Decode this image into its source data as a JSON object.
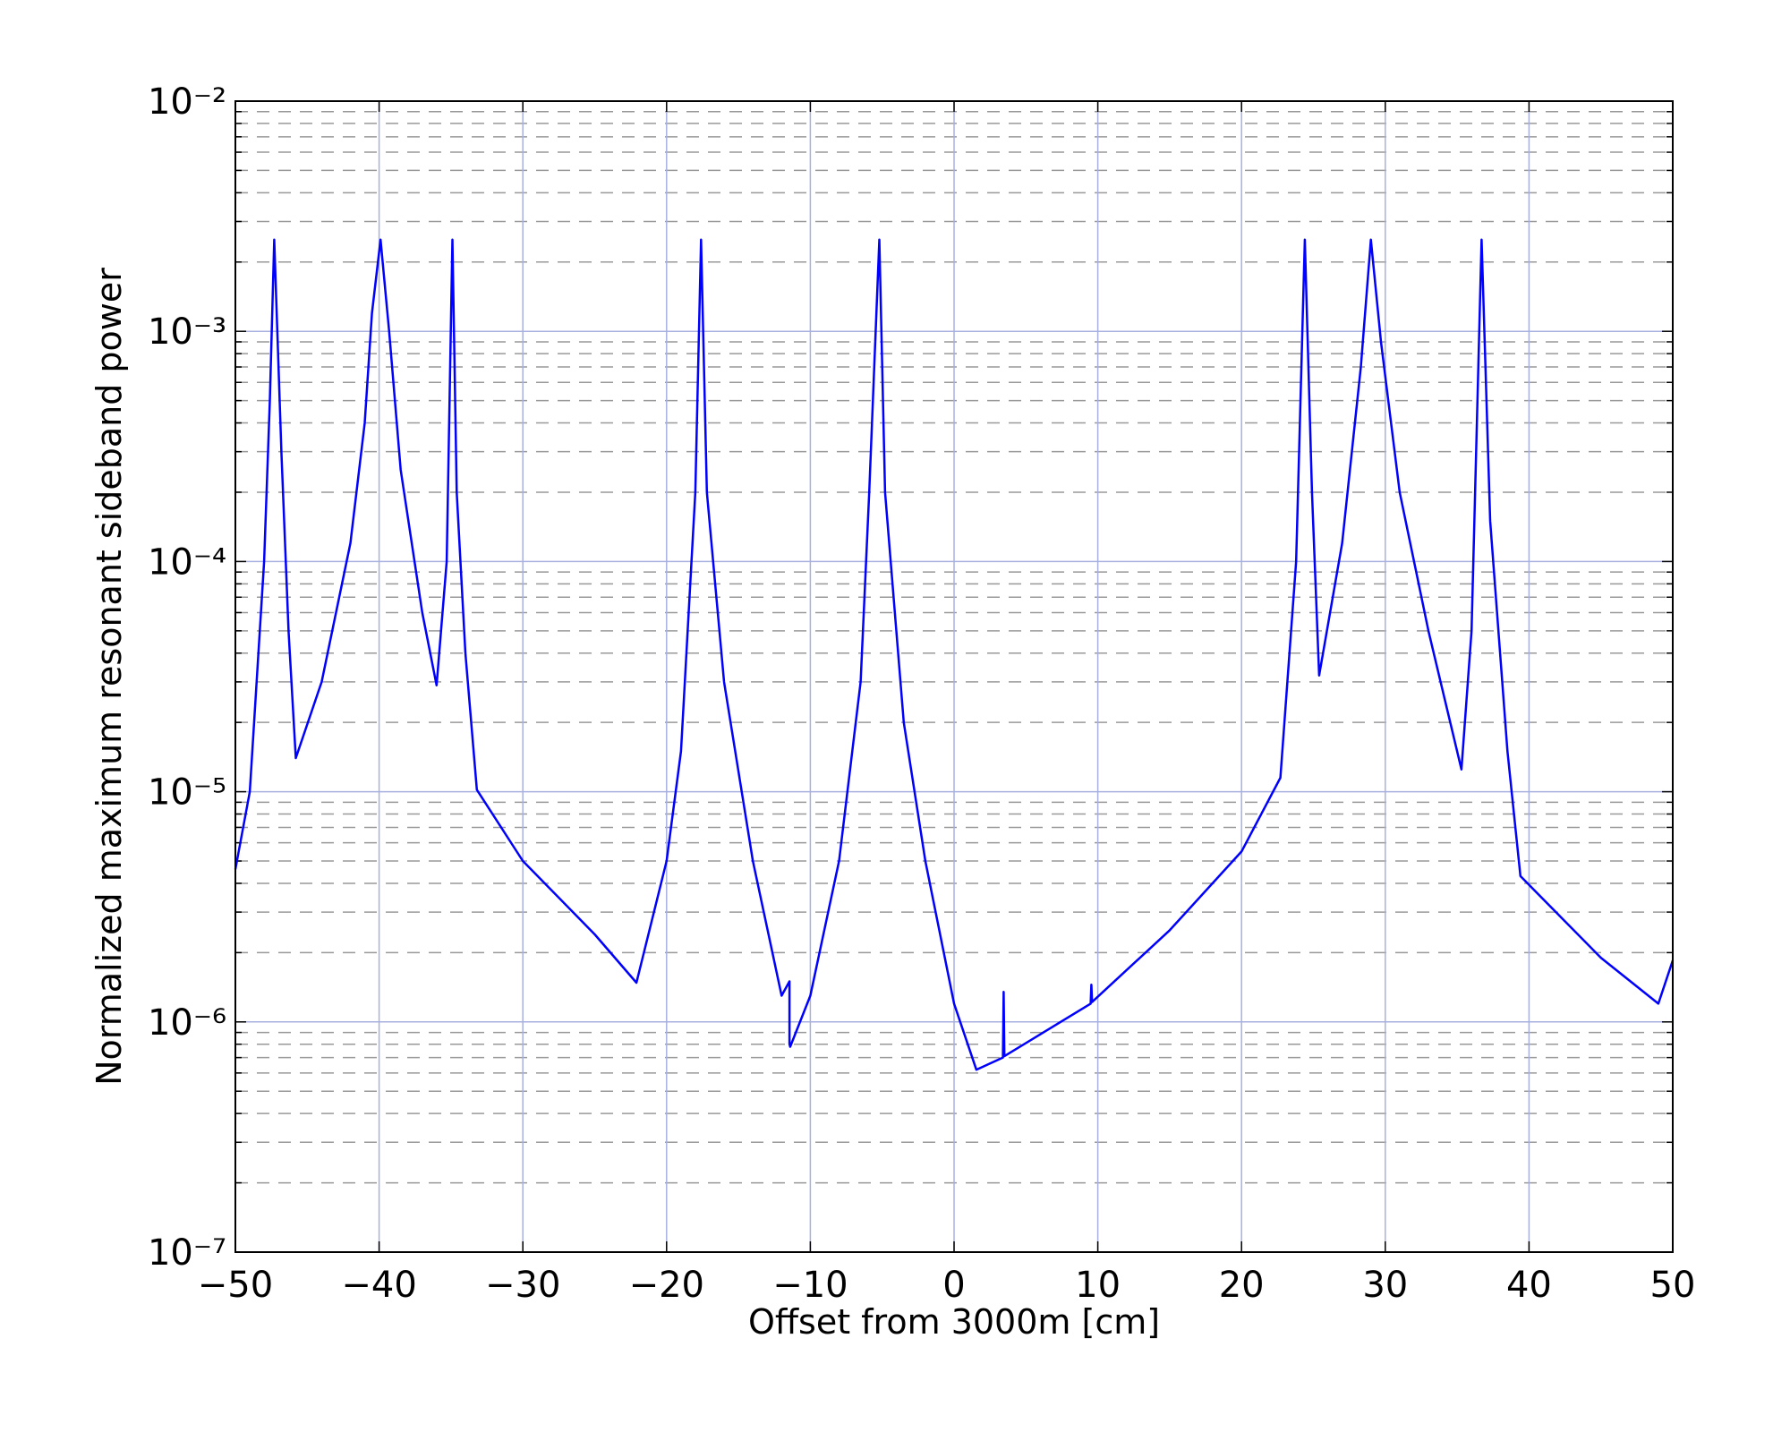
{
  "chart_data": {
    "type": "line",
    "xlabel": "Offset from 3000m [cm]",
    "ylabel": "Normalized maximum resonant sideband power",
    "yscale": "log",
    "grid": true,
    "minor_grid": true,
    "xlim": [
      -50,
      50
    ],
    "xticks": [
      {
        "value": -50,
        "label": "−50"
      },
      {
        "value": -40,
        "label": "−40"
      },
      {
        "value": -30,
        "label": "−30"
      },
      {
        "value": -20,
        "label": "−20"
      },
      {
        "value": -10,
        "label": "−10"
      },
      0,
      10,
      20,
      30,
      40,
      50
    ],
    "ylim": [
      1e-07,
      0.01
    ],
    "yticks": [
      {
        "value": 1e-07,
        "label": "10⁻⁷"
      },
      {
        "value": 1e-06,
        "label": "10⁻⁶"
      },
      {
        "value": 1e-05,
        "label": "10⁻⁵"
      },
      {
        "value": 0.0001,
        "label": "10⁻⁴"
      },
      {
        "value": 0.001,
        "label": "10⁻³"
      },
      {
        "value": 0.01,
        "label": "10⁻²"
      }
    ],
    "yminorticks": [
      2e-07,
      3e-07,
      4e-07,
      5e-07,
      6e-07,
      7e-07,
      8e-07,
      9e-07,
      2e-06,
      3e-06,
      4e-06,
      5e-06,
      6e-06,
      7e-06,
      8e-06,
      9e-06,
      2e-05,
      3e-05,
      4e-05,
      5e-05,
      6e-05,
      7e-05,
      8e-05,
      9e-05,
      0.0002,
      0.0003,
      0.0004,
      0.0005,
      0.0006,
      0.0007,
      0.0008,
      0.0009,
      0.002,
      0.003,
      0.004,
      0.005,
      0.006,
      0.007,
      0.008,
      0.009
    ],
    "series": [
      {
        "color": "#0000ff",
        "x": [
          -50,
          -49,
          -48,
          -47.6,
          -47.3,
          -46.8,
          -46.3,
          -45.8,
          -44,
          -42,
          -41,
          -40.5,
          -39.9,
          -39.3,
          -38.5,
          -37,
          -36,
          -35.3,
          -34.9,
          -34.6,
          -34,
          -33.2,
          -30,
          -25,
          -22.1,
          -20,
          -19,
          -18,
          -17.6,
          -17.2,
          -16,
          -14,
          -12,
          -11.45,
          -11.45,
          -11.4,
          -10,
          -8,
          -6.5,
          -5.9,
          -5.2,
          -4.8,
          -3.5,
          -2,
          0,
          1.55,
          3.4,
          3.45,
          3.5,
          9.5,
          9.55,
          9.6,
          15,
          20,
          22.7,
          23.8,
          24.4,
          24.9,
          25.4,
          27,
          28.3,
          29,
          29.7,
          31,
          33,
          35.3,
          36,
          36.7,
          37.3,
          38.5,
          39.4,
          45,
          49,
          50
        ],
        "values": [
          4.6e-06,
          1e-05,
          0.0001,
          0.0005,
          0.0025,
          0.0003,
          5e-05,
          1.4e-05,
          3e-05,
          0.00012,
          0.0004,
          0.0012,
          0.0025,
          0.001,
          0.00025,
          6e-05,
          2.9e-05,
          0.0001,
          0.0025,
          0.0002,
          4e-05,
          1.02e-05,
          5e-06,
          2.4e-06,
          1.48e-06,
          5e-06,
          1.5e-05,
          0.0002,
          0.0025,
          0.0002,
          3e-05,
          5e-06,
          1.3e-06,
          1.5e-06,
          8e-07,
          7.8e-07,
          1.3e-06,
          5e-06,
          3e-05,
          0.0002,
          0.0025,
          0.0002,
          2e-05,
          5e-06,
          1.2e-06,
          6.2e-07,
          7e-07,
          1.35e-06,
          7.1e-07,
          1.2e-06,
          1.45e-06,
          1.22e-06,
          2.5e-06,
          5.5e-06,
          1.15e-05,
          0.0001,
          0.0025,
          0.0002,
          3.2e-05,
          0.00012,
          0.0007,
          0.0025,
          0.0009,
          0.0002,
          5e-05,
          1.25e-05,
          5e-05,
          0.0025,
          0.00015,
          1.5e-05,
          4.3e-06,
          1.9e-06,
          1.2e-06,
          1.85e-06
        ]
      }
    ]
  }
}
